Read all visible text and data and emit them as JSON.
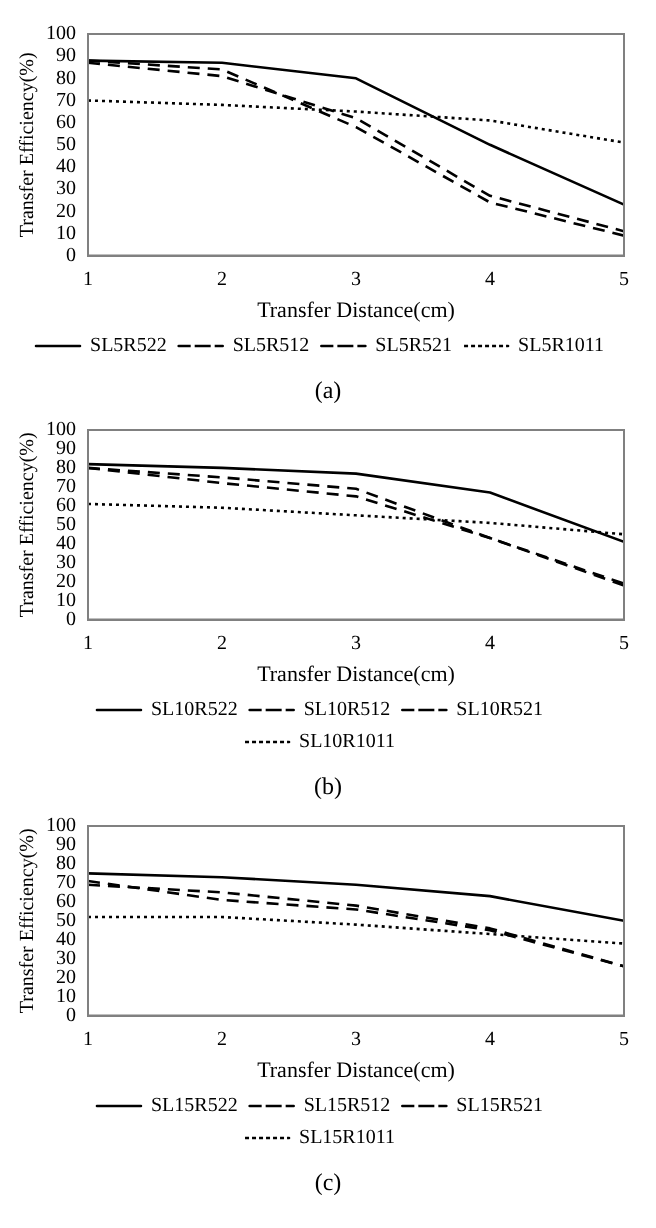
{
  "chart_data": [
    {
      "type": "line",
      "xlabel": "Transfer Distance(cm)",
      "ylabel": "Transfer Efficiency(%)",
      "x": [
        1,
        2,
        3,
        4,
        5
      ],
      "xlim": [
        1,
        5
      ],
      "xticks": [
        1,
        2,
        3,
        4,
        5
      ],
      "ylim": [
        0,
        100
      ],
      "yticks": [
        0,
        10,
        20,
        30,
        40,
        50,
        60,
        70,
        80,
        90,
        100
      ],
      "grid": false,
      "legend": "bottom",
      "marker": "none",
      "annotations": [
        "(a)"
      ],
      "series": [
        {
          "name": "SL5R522",
          "color": "#000000",
          "line_style": "solid",
          "values": [
            88,
            87,
            80,
            50,
            23
          ]
        },
        {
          "name": "SL5R512",
          "color": "#000000",
          "line_style": "dashed",
          "values": [
            88,
            84,
            58,
            24,
            9
          ]
        },
        {
          "name": "SL5R521",
          "color": "#000000",
          "line_style": "dashed",
          "values": [
            87,
            81,
            62,
            27,
            11
          ]
        },
        {
          "name": "SL5R1011",
          "color": "#000000",
          "line_style": "dotted",
          "values": [
            70,
            68,
            65,
            61,
            51
          ]
        }
      ]
    },
    {
      "type": "line",
      "xlabel": "Transfer Distance(cm)",
      "ylabel": "Transfer Efficiency(%)",
      "x": [
        1,
        2,
        3,
        4,
        5
      ],
      "xlim": [
        1,
        5
      ],
      "xticks": [
        1,
        2,
        3,
        4,
        5
      ],
      "ylim": [
        0,
        100
      ],
      "yticks": [
        0,
        10,
        20,
        30,
        40,
        50,
        60,
        70,
        80,
        90,
        100
      ],
      "grid": false,
      "legend": "bottom",
      "marker": "none",
      "annotations": [
        "(b)"
      ],
      "series": [
        {
          "name": "SL10R522",
          "color": "#000000",
          "line_style": "solid",
          "values": [
            82,
            80,
            77,
            67,
            41
          ]
        },
        {
          "name": "SL10R512",
          "color": "#000000",
          "line_style": "dashed",
          "values": [
            80,
            75,
            69,
            43,
            19
          ]
        },
        {
          "name": "SL10R521",
          "color": "#000000",
          "line_style": "dashed",
          "values": [
            80,
            72,
            65,
            43,
            18
          ]
        },
        {
          "name": "SL10R1011",
          "color": "#000000",
          "line_style": "dotted",
          "values": [
            61,
            59,
            55,
            51,
            45
          ]
        }
      ]
    },
    {
      "type": "line",
      "xlabel": "Transfer Distance(cm)",
      "ylabel": "Transfer Efficiency(%)",
      "x": [
        1,
        2,
        3,
        4,
        5
      ],
      "xlim": [
        1,
        5
      ],
      "xticks": [
        1,
        2,
        3,
        4,
        5
      ],
      "ylim": [
        0,
        100
      ],
      "yticks": [
        0,
        10,
        20,
        30,
        40,
        50,
        60,
        70,
        80,
        90,
        100
      ],
      "grid": false,
      "legend": "bottom",
      "marker": "none",
      "annotations": [
        "(c)"
      ],
      "series": [
        {
          "name": "SL15R522",
          "color": "#000000",
          "line_style": "solid",
          "values": [
            75,
            73,
            69,
            63,
            50
          ]
        },
        {
          "name": "SL15R512",
          "color": "#000000",
          "line_style": "dashed",
          "values": [
            69,
            65,
            58,
            46,
            26
          ]
        },
        {
          "name": "SL15R521",
          "color": "#000000",
          "line_style": "dashed",
          "values": [
            71,
            61,
            56,
            45,
            26
          ]
        },
        {
          "name": "SL15R1011",
          "color": "#000000",
          "line_style": "dotted",
          "values": [
            52,
            52,
            48,
            43,
            38
          ]
        }
      ]
    }
  ]
}
